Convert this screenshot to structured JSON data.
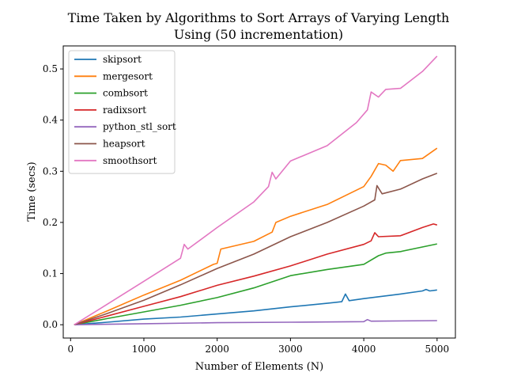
{
  "chart_data": {
    "type": "line",
    "title": "Time Taken by Algorithms to Sort Arrays of Varying Length",
    "subtitle": "Using (50 incrementation)",
    "xlabel": "Number of Elements (N)",
    "ylabel": "Time (secs)",
    "xlim": [
      -100,
      5250
    ],
    "ylim": [
      -0.026,
      0.545
    ],
    "xticks": [
      0,
      1000,
      2000,
      3000,
      4000,
      5000
    ],
    "xtick_labels": [
      "0",
      "1000",
      "2000",
      "3000",
      "4000",
      "5000"
    ],
    "yticks": [
      0.0,
      0.1,
      0.2,
      0.3,
      0.4,
      0.5
    ],
    "ytick_labels": [
      "0.0",
      "0.1",
      "0.2",
      "0.3",
      "0.4",
      "0.5"
    ],
    "grid": false,
    "legend_position": "top-left",
    "series": [
      {
        "name": "skipsort",
        "color": "#1f77b4",
        "points": [
          [
            50,
            0.0
          ],
          [
            500,
            0.005
          ],
          [
            1000,
            0.011
          ],
          [
            1500,
            0.015
          ],
          [
            2000,
            0.021
          ],
          [
            2500,
            0.027
          ],
          [
            3000,
            0.035
          ],
          [
            3500,
            0.042
          ],
          [
            3700,
            0.045
          ],
          [
            3750,
            0.06
          ],
          [
            3800,
            0.047
          ],
          [
            4000,
            0.051
          ],
          [
            4500,
            0.06
          ],
          [
            4800,
            0.066
          ],
          [
            4850,
            0.069
          ],
          [
            4900,
            0.066
          ],
          [
            5000,
            0.068
          ]
        ]
      },
      {
        "name": "mergesort",
        "color": "#ff7f0e",
        "points": [
          [
            50,
            0.0
          ],
          [
            500,
            0.027
          ],
          [
            1000,
            0.058
          ],
          [
            1500,
            0.087
          ],
          [
            1950,
            0.118
          ],
          [
            2000,
            0.12
          ],
          [
            2050,
            0.148
          ],
          [
            2500,
            0.163
          ],
          [
            2750,
            0.181
          ],
          [
            2800,
            0.2
          ],
          [
            3000,
            0.212
          ],
          [
            3500,
            0.235
          ],
          [
            4000,
            0.27
          ],
          [
            4100,
            0.29
          ],
          [
            4200,
            0.315
          ],
          [
            4300,
            0.312
          ],
          [
            4400,
            0.3
          ],
          [
            4500,
            0.321
          ],
          [
            4800,
            0.325
          ],
          [
            5000,
            0.345
          ]
        ]
      },
      {
        "name": "combsort",
        "color": "#2ca02c",
        "points": [
          [
            50,
            0.0
          ],
          [
            500,
            0.012
          ],
          [
            1000,
            0.025
          ],
          [
            1500,
            0.038
          ],
          [
            2000,
            0.053
          ],
          [
            2500,
            0.072
          ],
          [
            3000,
            0.096
          ],
          [
            3500,
            0.108
          ],
          [
            4000,
            0.118
          ],
          [
            4200,
            0.135
          ],
          [
            4300,
            0.14
          ],
          [
            4500,
            0.143
          ],
          [
            5000,
            0.158
          ]
        ]
      },
      {
        "name": "radixsort",
        "color": "#d62728",
        "points": [
          [
            50,
            0.0
          ],
          [
            500,
            0.017
          ],
          [
            1000,
            0.036
          ],
          [
            1500,
            0.055
          ],
          [
            2000,
            0.077
          ],
          [
            2500,
            0.095
          ],
          [
            3000,
            0.115
          ],
          [
            3500,
            0.138
          ],
          [
            4000,
            0.157
          ],
          [
            4100,
            0.164
          ],
          [
            4150,
            0.18
          ],
          [
            4200,
            0.172
          ],
          [
            4500,
            0.174
          ],
          [
            4800,
            0.19
          ],
          [
            4950,
            0.197
          ],
          [
            5000,
            0.195
          ]
        ]
      },
      {
        "name": "python_stl_sort",
        "color": "#9467bd",
        "points": [
          [
            50,
            0.0
          ],
          [
            1000,
            0.002
          ],
          [
            2000,
            0.004
          ],
          [
            3000,
            0.005
          ],
          [
            4000,
            0.006
          ],
          [
            4050,
            0.01
          ],
          [
            4100,
            0.007
          ],
          [
            5000,
            0.008
          ]
        ]
      },
      {
        "name": "heapsort",
        "color": "#8c564b",
        "points": [
          [
            50,
            0.0
          ],
          [
            500,
            0.022
          ],
          [
            1000,
            0.048
          ],
          [
            1500,
            0.078
          ],
          [
            2000,
            0.11
          ],
          [
            2500,
            0.138
          ],
          [
            3000,
            0.172
          ],
          [
            3500,
            0.2
          ],
          [
            4000,
            0.232
          ],
          [
            4150,
            0.244
          ],
          [
            4180,
            0.272
          ],
          [
            4250,
            0.256
          ],
          [
            4500,
            0.265
          ],
          [
            4800,
            0.285
          ],
          [
            5000,
            0.296
          ]
        ]
      },
      {
        "name": "smoothsort",
        "color": "#e377c2",
        "points": [
          [
            50,
            0.0
          ],
          [
            500,
            0.04
          ],
          [
            1000,
            0.085
          ],
          [
            1500,
            0.13
          ],
          [
            1550,
            0.157
          ],
          [
            1600,
            0.148
          ],
          [
            2000,
            0.19
          ],
          [
            2500,
            0.24
          ],
          [
            2700,
            0.27
          ],
          [
            2750,
            0.298
          ],
          [
            2800,
            0.285
          ],
          [
            3000,
            0.32
          ],
          [
            3500,
            0.35
          ],
          [
            3900,
            0.395
          ],
          [
            4050,
            0.42
          ],
          [
            4100,
            0.455
          ],
          [
            4200,
            0.445
          ],
          [
            4300,
            0.46
          ],
          [
            4500,
            0.462
          ],
          [
            4800,
            0.495
          ],
          [
            5000,
            0.525
          ]
        ]
      }
    ]
  }
}
